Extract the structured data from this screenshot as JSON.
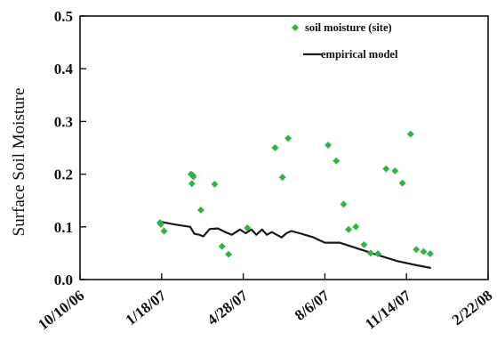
{
  "chart_data": {
    "type": "scatter",
    "title": "",
    "xlabel": "",
    "ylabel": "Surface Soil Moisture",
    "x_type": "date",
    "xlim": [
      "2006-10-10",
      "2008-02-22"
    ],
    "ylim": [
      0,
      0.5
    ],
    "x_ticks": [
      "2006-10-10",
      "2007-01-18",
      "2007-04-28",
      "2007-08-06",
      "2007-11-14",
      "2008-02-22"
    ],
    "x_tick_labels": [
      "10/10/06",
      "1/18/07",
      "4/28/07",
      "8/6/07",
      "11/14/07",
      "2/22/08"
    ],
    "y_ticks": [
      0,
      0.1,
      0.2,
      0.3,
      0.4,
      0.5
    ],
    "y_tick_labels": [
      "0.0",
      "0.1",
      "0.2",
      "0.3",
      "0.4",
      "0.5"
    ],
    "grid": false,
    "legend_position": "top-right",
    "series": [
      {
        "name": "soil moisture (site)",
        "type": "scatter",
        "color": "#33b24a",
        "marker": "diamond",
        "points": [
          {
            "x": "2007-01-16",
            "y": 0.108
          },
          {
            "x": "2007-01-17",
            "y": 0.105
          },
          {
            "x": "2007-01-21",
            "y": 0.092
          },
          {
            "x": "2007-02-23",
            "y": 0.2
          },
          {
            "x": "2007-02-24",
            "y": 0.182
          },
          {
            "x": "2007-02-25",
            "y": 0.198
          },
          {
            "x": "2007-02-26",
            "y": 0.195
          },
          {
            "x": "2007-03-07",
            "y": 0.132
          },
          {
            "x": "2007-03-24",
            "y": 0.181
          },
          {
            "x": "2007-04-02",
            "y": 0.063
          },
          {
            "x": "2007-04-10",
            "y": 0.048
          },
          {
            "x": "2007-05-03",
            "y": 0.098
          },
          {
            "x": "2007-06-06",
            "y": 0.25
          },
          {
            "x": "2007-06-15",
            "y": 0.194
          },
          {
            "x": "2007-06-22",
            "y": 0.268
          },
          {
            "x": "2007-08-10",
            "y": 0.255
          },
          {
            "x": "2007-08-20",
            "y": 0.225
          },
          {
            "x": "2007-08-29",
            "y": 0.143
          },
          {
            "x": "2007-09-04",
            "y": 0.095
          },
          {
            "x": "2007-09-13",
            "y": 0.1
          },
          {
            "x": "2007-09-23",
            "y": 0.066
          },
          {
            "x": "2007-10-01",
            "y": 0.05
          },
          {
            "x": "2007-10-10",
            "y": 0.049
          },
          {
            "x": "2007-10-20",
            "y": 0.21
          },
          {
            "x": "2007-10-31",
            "y": 0.206
          },
          {
            "x": "2007-11-09",
            "y": 0.183
          },
          {
            "x": "2007-11-19",
            "y": 0.276
          },
          {
            "x": "2007-11-26",
            "y": 0.057
          },
          {
            "x": "2007-12-05",
            "y": 0.053
          },
          {
            "x": "2007-12-13",
            "y": 0.049
          }
        ]
      },
      {
        "name": "empirical model",
        "type": "line",
        "color": "#1a1a1a",
        "points": [
          {
            "x": "2007-01-16",
            "y": 0.11
          },
          {
            "x": "2007-02-01",
            "y": 0.105
          },
          {
            "x": "2007-02-22",
            "y": 0.1
          },
          {
            "x": "2007-02-27",
            "y": 0.087
          },
          {
            "x": "2007-03-05",
            "y": 0.085
          },
          {
            "x": "2007-03-10",
            "y": 0.082
          },
          {
            "x": "2007-03-18",
            "y": 0.096
          },
          {
            "x": "2007-03-28",
            "y": 0.097
          },
          {
            "x": "2007-04-06",
            "y": 0.09
          },
          {
            "x": "2007-04-14",
            "y": 0.085
          },
          {
            "x": "2007-04-24",
            "y": 0.095
          },
          {
            "x": "2007-05-01",
            "y": 0.088
          },
          {
            "x": "2007-05-08",
            "y": 0.095
          },
          {
            "x": "2007-05-14",
            "y": 0.085
          },
          {
            "x": "2007-05-21",
            "y": 0.095
          },
          {
            "x": "2007-05-27",
            "y": 0.085
          },
          {
            "x": "2007-06-02",
            "y": 0.09
          },
          {
            "x": "2007-06-08",
            "y": 0.085
          },
          {
            "x": "2007-06-14",
            "y": 0.08
          },
          {
            "x": "2007-06-20",
            "y": 0.088
          },
          {
            "x": "2007-06-26",
            "y": 0.092
          },
          {
            "x": "2007-07-08",
            "y": 0.087
          },
          {
            "x": "2007-07-23",
            "y": 0.08
          },
          {
            "x": "2007-08-06",
            "y": 0.07
          },
          {
            "x": "2007-08-24",
            "y": 0.07
          },
          {
            "x": "2007-09-17",
            "y": 0.058
          },
          {
            "x": "2007-10-11",
            "y": 0.046
          },
          {
            "x": "2007-11-03",
            "y": 0.035
          },
          {
            "x": "2007-11-27",
            "y": 0.027
          },
          {
            "x": "2007-12-14",
            "y": 0.022
          }
        ]
      }
    ]
  }
}
